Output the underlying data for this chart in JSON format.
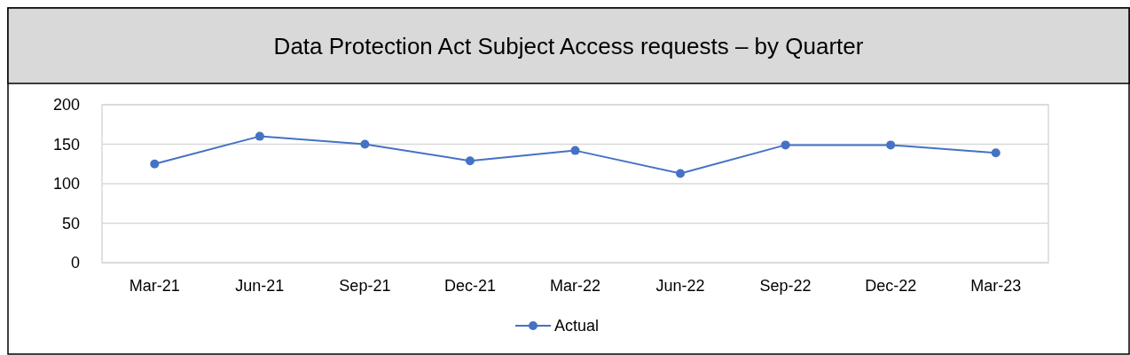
{
  "chart_data": {
    "type": "line",
    "title": "Data Protection Act Subject Access requests – by Quarter",
    "categories": [
      "Mar-21",
      "Jun-21",
      "Sep-21",
      "Dec-21",
      "Mar-22",
      "Jun-22",
      "Sep-22",
      "Dec-22",
      "Mar-23"
    ],
    "series": [
      {
        "name": "Actual",
        "color": "#4472c4",
        "values": [
          125,
          160,
          150,
          129,
          142,
          113,
          149,
          149,
          139
        ]
      }
    ],
    "ylim": [
      0,
      200
    ],
    "yticks": [
      0,
      50,
      100,
      150,
      200
    ],
    "grid": "y",
    "legend": "bottom",
    "marker": "circle"
  }
}
